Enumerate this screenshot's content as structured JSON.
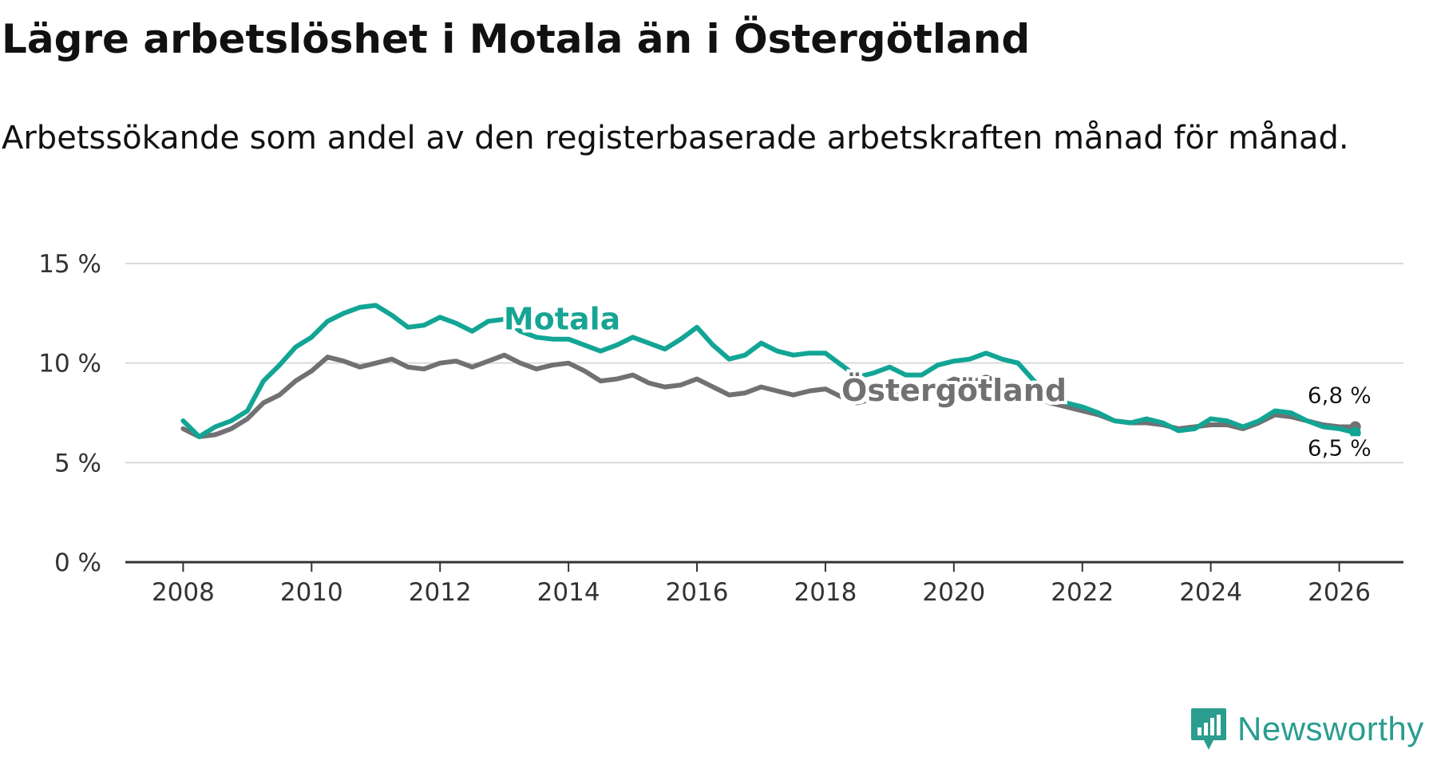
{
  "header": {
    "title": "Lägre arbetslöshet i Motala än i Östergötland",
    "subtitle": "Arbetssökande som andel av den registerbaserade arbetskraften månad för månad."
  },
  "colors": {
    "motala": "#12a595",
    "ostergotland": "#717173",
    "grid": "#d9d9d9",
    "axis": "#333333",
    "brand": "#2a9d8f"
  },
  "brand": {
    "name": "Newsworthy",
    "icon": "newsworthy-logo-icon"
  },
  "chart_data": {
    "type": "line",
    "title": "Lägre arbetslöshet i Motala än i Östergötland",
    "subtitle": "Arbetssökande som andel av den registerbaserade arbetskraften månad för månad.",
    "xlabel": "",
    "ylabel": "",
    "xlim": [
      2007.1,
      2027.0
    ],
    "ylim": [
      0,
      15
    ],
    "x_ticks": [
      2008,
      2010,
      2012,
      2014,
      2016,
      2018,
      2020,
      2022,
      2024,
      2026
    ],
    "x_tick_labels": [
      "2008",
      "2010",
      "2012",
      "2014",
      "2016",
      "2018",
      "2020",
      "2022",
      "2024",
      "2026"
    ],
    "y_ticks": [
      0,
      5,
      10,
      15
    ],
    "y_tick_labels": [
      "0 %",
      "5 %",
      "10 %",
      "15 %"
    ],
    "grid": true,
    "series": [
      {
        "name": "Östergötland",
        "label": "Östergötland",
        "color": "#717173",
        "end_label": "6,8 %",
        "points": [
          [
            2008.0,
            6.7
          ],
          [
            2008.25,
            6.3
          ],
          [
            2008.5,
            6.4
          ],
          [
            2008.75,
            6.7
          ],
          [
            2009.0,
            7.2
          ],
          [
            2009.25,
            8.0
          ],
          [
            2009.5,
            8.4
          ],
          [
            2009.75,
            9.1
          ],
          [
            2010.0,
            9.6
          ],
          [
            2010.25,
            10.3
          ],
          [
            2010.5,
            10.1
          ],
          [
            2010.75,
            9.8
          ],
          [
            2011.0,
            10.0
          ],
          [
            2011.25,
            10.2
          ],
          [
            2011.5,
            9.8
          ],
          [
            2011.75,
            9.7
          ],
          [
            2012.0,
            10.0
          ],
          [
            2012.25,
            10.1
          ],
          [
            2012.5,
            9.8
          ],
          [
            2012.75,
            10.1
          ],
          [
            2013.0,
            10.4
          ],
          [
            2013.25,
            10.0
          ],
          [
            2013.5,
            9.7
          ],
          [
            2013.75,
            9.9
          ],
          [
            2014.0,
            10.0
          ],
          [
            2014.25,
            9.6
          ],
          [
            2014.5,
            9.1
          ],
          [
            2014.75,
            9.2
          ],
          [
            2015.0,
            9.4
          ],
          [
            2015.25,
            9.0
          ],
          [
            2015.5,
            8.8
          ],
          [
            2015.75,
            8.9
          ],
          [
            2016.0,
            9.2
          ],
          [
            2016.25,
            8.8
          ],
          [
            2016.5,
            8.4
          ],
          [
            2016.75,
            8.5
          ],
          [
            2017.0,
            8.8
          ],
          [
            2017.25,
            8.6
          ],
          [
            2017.5,
            8.4
          ],
          [
            2017.75,
            8.6
          ],
          [
            2018.0,
            8.7
          ],
          [
            2018.25,
            8.3
          ],
          [
            2018.5,
            8.0
          ],
          [
            2018.75,
            8.2
          ],
          [
            2019.0,
            8.5
          ],
          [
            2019.25,
            8.3
          ],
          [
            2019.5,
            8.4
          ],
          [
            2019.75,
            8.8
          ],
          [
            2020.0,
            9.2
          ],
          [
            2020.25,
            9.0
          ],
          [
            2020.5,
            9.3
          ],
          [
            2020.75,
            9.0
          ],
          [
            2021.0,
            8.7
          ],
          [
            2021.25,
            8.3
          ],
          [
            2021.5,
            8.0
          ],
          [
            2021.75,
            7.8
          ],
          [
            2022.0,
            7.6
          ],
          [
            2022.25,
            7.4
          ],
          [
            2022.5,
            7.1
          ],
          [
            2022.75,
            7.0
          ],
          [
            2023.0,
            7.0
          ],
          [
            2023.25,
            6.9
          ],
          [
            2023.5,
            6.7
          ],
          [
            2023.75,
            6.8
          ],
          [
            2024.0,
            6.9
          ],
          [
            2024.25,
            6.9
          ],
          [
            2024.5,
            6.7
          ],
          [
            2024.75,
            7.0
          ],
          [
            2025.0,
            7.4
          ],
          [
            2025.25,
            7.3
          ],
          [
            2025.5,
            7.1
          ],
          [
            2025.75,
            6.9
          ],
          [
            2026.0,
            6.8
          ],
          [
            2026.25,
            6.8
          ]
        ]
      },
      {
        "name": "Motala",
        "label": "Motala",
        "color": "#12a595",
        "end_label": "6,5 %",
        "points": [
          [
            2008.0,
            7.1
          ],
          [
            2008.25,
            6.3
          ],
          [
            2008.5,
            6.8
          ],
          [
            2008.75,
            7.1
          ],
          [
            2009.0,
            7.6
          ],
          [
            2009.25,
            9.1
          ],
          [
            2009.5,
            9.9
          ],
          [
            2009.75,
            10.8
          ],
          [
            2010.0,
            11.3
          ],
          [
            2010.25,
            12.1
          ],
          [
            2010.5,
            12.5
          ],
          [
            2010.75,
            12.8
          ],
          [
            2011.0,
            12.9
          ],
          [
            2011.25,
            12.4
          ],
          [
            2011.5,
            11.8
          ],
          [
            2011.75,
            11.9
          ],
          [
            2012.0,
            12.3
          ],
          [
            2012.25,
            12.0
          ],
          [
            2012.5,
            11.6
          ],
          [
            2012.75,
            12.1
          ],
          [
            2013.0,
            12.2
          ],
          [
            2013.25,
            11.6
          ],
          [
            2013.5,
            11.3
          ],
          [
            2013.75,
            11.2
          ],
          [
            2014.0,
            11.2
          ],
          [
            2014.25,
            10.9
          ],
          [
            2014.5,
            10.6
          ],
          [
            2014.75,
            10.9
          ],
          [
            2015.0,
            11.3
          ],
          [
            2015.25,
            11.0
          ],
          [
            2015.5,
            10.7
          ],
          [
            2015.75,
            11.2
          ],
          [
            2016.0,
            11.8
          ],
          [
            2016.25,
            10.9
          ],
          [
            2016.5,
            10.2
          ],
          [
            2016.75,
            10.4
          ],
          [
            2017.0,
            11.0
          ],
          [
            2017.25,
            10.6
          ],
          [
            2017.5,
            10.4
          ],
          [
            2017.75,
            10.5
          ],
          [
            2018.0,
            10.5
          ],
          [
            2018.25,
            9.9
          ],
          [
            2018.5,
            9.3
          ],
          [
            2018.75,
            9.5
          ],
          [
            2019.0,
            9.8
          ],
          [
            2019.25,
            9.4
          ],
          [
            2019.5,
            9.4
          ],
          [
            2019.75,
            9.9
          ],
          [
            2020.0,
            10.1
          ],
          [
            2020.25,
            10.2
          ],
          [
            2020.5,
            10.5
          ],
          [
            2020.75,
            10.2
          ],
          [
            2021.0,
            10.0
          ],
          [
            2021.25,
            9.1
          ],
          [
            2021.5,
            8.5
          ],
          [
            2021.75,
            8.0
          ],
          [
            2022.0,
            7.8
          ],
          [
            2022.25,
            7.5
          ],
          [
            2022.5,
            7.1
          ],
          [
            2022.75,
            7.0
          ],
          [
            2023.0,
            7.2
          ],
          [
            2023.25,
            7.0
          ],
          [
            2023.5,
            6.6
          ],
          [
            2023.75,
            6.7
          ],
          [
            2024.0,
            7.2
          ],
          [
            2024.25,
            7.1
          ],
          [
            2024.5,
            6.8
          ],
          [
            2024.75,
            7.1
          ],
          [
            2025.0,
            7.6
          ],
          [
            2025.25,
            7.5
          ],
          [
            2025.5,
            7.1
          ],
          [
            2025.75,
            6.8
          ],
          [
            2026.0,
            6.7
          ],
          [
            2026.25,
            6.5
          ]
        ]
      }
    ]
  }
}
